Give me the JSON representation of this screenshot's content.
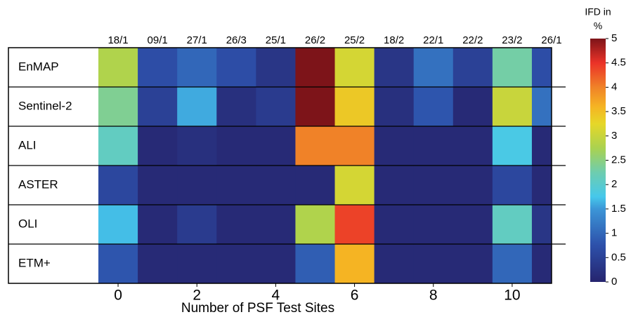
{
  "chart_data": {
    "type": "heatmap",
    "x_label": "Number of PSF Test Sites",
    "column_labels": [
      "18/1",
      "09/1",
      "27/1",
      "26/3",
      "25/1",
      "26/2",
      "25/2",
      "18/2",
      "22/1",
      "22/2",
      "23/2",
      "26/1"
    ],
    "row_labels": [
      "EnMAP",
      "Sentinel-2",
      "ALI",
      "ASTER",
      "OLI",
      "ETM+"
    ],
    "values": [
      [
        2.8,
        0.7,
        1.0,
        0.7,
        0.3,
        5.0,
        3.1,
        0.3,
        1.1,
        0.5,
        2.3,
        0.7
      ],
      [
        2.4,
        0.5,
        1.6,
        0.2,
        0.4,
        5.0,
        3.4,
        0.2,
        0.8,
        0.1,
        3.0,
        1.1
      ],
      [
        2.1,
        0.1,
        0.2,
        0.1,
        0.1,
        4.0,
        4.0,
        0.1,
        0.1,
        0.1,
        1.8,
        0.1
      ],
      [
        0.6,
        0.1,
        0.1,
        0.1,
        0.1,
        0.1,
        3.1,
        0.1,
        0.1,
        0.1,
        0.6,
        0.1
      ],
      [
        1.7,
        0.1,
        0.4,
        0.1,
        0.1,
        2.8,
        4.4,
        0.1,
        0.1,
        0.1,
        2.1,
        0.3
      ],
      [
        0.8,
        0.1,
        0.1,
        0.1,
        0.1,
        0.9,
        3.6,
        0.1,
        0.1,
        0.1,
        1.0,
        0.1
      ]
    ],
    "xlim": [
      -0.5,
      11
    ],
    "xticks": [
      0,
      2,
      4,
      6,
      8,
      10
    ],
    "colormap": "jet",
    "colorbar": {
      "title": [
        "IFD in",
        "%"
      ],
      "lim": [
        0,
        5
      ],
      "ticks": [
        0,
        0.5,
        1,
        1.5,
        2,
        2.5,
        3,
        3.5,
        4,
        4.5,
        5
      ]
    }
  }
}
